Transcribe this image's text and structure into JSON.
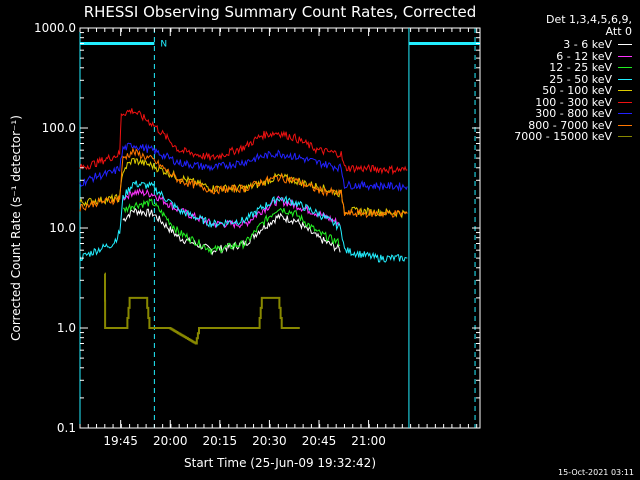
{
  "chart_data": {
    "type": "line",
    "title": "RHESSI Observing Summary Count Rates, Corrected",
    "xlabel": "Start Time (25-Jun-09 19:32:42)",
    "ylabel": "Corrected Count Rate (s⁻¹ detector⁻¹)",
    "yscale": "log",
    "ylim": [
      0.1,
      1000
    ],
    "xlim_minutes": [
      0,
      121
    ],
    "y_ticks": [
      "0.1",
      "1.0",
      "10.0",
      "100.0",
      "1000.0"
    ],
    "x_ticks": [
      {
        "label": "19:45",
        "t": 12.3
      },
      {
        "label": "20:00",
        "t": 27.3
      },
      {
        "label": "20:15",
        "t": 42.3
      },
      {
        "label": "20:30",
        "t": 57.3
      },
      {
        "label": "20:45",
        "t": 72.3
      },
      {
        "label": "21:00",
        "t": 87.3
      }
    ],
    "night_bars": [
      {
        "start": 0,
        "end": 22.5
      },
      {
        "start": 99.5,
        "end": 121
      }
    ],
    "night_label": "N",
    "markers": [
      {
        "t": 0,
        "style": "solid"
      },
      {
        "t": 22.5,
        "style": "dashed"
      },
      {
        "t": 99.5,
        "style": "solid"
      },
      {
        "t": 119.5,
        "style": "dashed"
      }
    ],
    "series": [
      {
        "name": "3 - 6 keV",
        "color": "#ffffff",
        "t": [
          0,
          12,
          13,
          16,
          22,
          30,
          40,
          50,
          55,
          60,
          65,
          72,
          79,
          80,
          99
        ],
        "v": [
          null,
          null,
          12,
          15,
          14,
          8,
          6,
          7,
          10,
          13,
          12,
          8,
          6,
          null,
          null
        ]
      },
      {
        "name": "6 - 12 keV",
        "color": "#ff33ff",
        "t": [
          0,
          12,
          13,
          16,
          22,
          30,
          40,
          50,
          55,
          60,
          65,
          72,
          79,
          80,
          99
        ],
        "v": [
          null,
          null,
          20,
          23,
          22,
          15,
          11,
          11,
          15,
          19,
          17,
          14,
          11,
          null,
          null
        ]
      },
      {
        "name": "12 - 25 keV",
        "color": "#22ee22",
        "t": [
          0,
          12,
          13,
          16,
          22,
          30,
          40,
          50,
          55,
          60,
          65,
          72,
          79,
          80,
          99
        ],
        "v": [
          null,
          null,
          15,
          17,
          18,
          9,
          6,
          7,
          11,
          16,
          14,
          9,
          7,
          null,
          null
        ]
      },
      {
        "name": "25 - 50 keV",
        "color": "#22eeff",
        "t": [
          0,
          5,
          10,
          12,
          13,
          16,
          22,
          30,
          40,
          50,
          55,
          60,
          65,
          72,
          79,
          80,
          90,
          99
        ],
        "v": [
          5,
          6,
          7,
          9,
          20,
          28,
          26,
          15,
          11,
          12,
          16,
          20,
          18,
          14,
          10,
          6,
          5,
          5
        ]
      },
      {
        "name": "50 - 100 keV",
        "color": "#ddcc00",
        "t": [
          0,
          12,
          13,
          16,
          22,
          30,
          40,
          50,
          55,
          60,
          65,
          72,
          79,
          80,
          99
        ],
        "v": [
          18,
          20,
          38,
          48,
          42,
          32,
          25,
          25,
          28,
          33,
          30,
          26,
          22,
          15,
          14
        ]
      },
      {
        "name": "100 - 300 keV",
        "color": "#ee1111",
        "t": [
          0,
          5,
          10,
          12,
          12.5,
          16,
          22,
          30,
          40,
          50,
          55,
          60,
          65,
          72,
          79,
          80,
          99
        ],
        "v": [
          40,
          45,
          52,
          55,
          140,
          150,
          110,
          60,
          50,
          65,
          85,
          90,
          80,
          60,
          55,
          40,
          38
        ]
      },
      {
        "name": "300 - 800 keV",
        "color": "#2222ff",
        "t": [
          0,
          5,
          10,
          12,
          13,
          16,
          22,
          30,
          40,
          50,
          55,
          60,
          65,
          72,
          79,
          80,
          99
        ],
        "v": [
          28,
          33,
          36,
          40,
          62,
          68,
          60,
          45,
          40,
          46,
          52,
          56,
          52,
          45,
          40,
          27,
          26
        ]
      },
      {
        "name": "800 - 7000 keV",
        "color": "#ff7700",
        "t": [
          0,
          5,
          10,
          12,
          13,
          16,
          22,
          30,
          40,
          50,
          55,
          60,
          65,
          72,
          79,
          80,
          99
        ],
        "v": [
          16,
          18,
          19,
          20,
          50,
          58,
          48,
          30,
          24,
          25,
          29,
          32,
          30,
          24,
          22,
          14,
          14
        ]
      },
      {
        "name": "7000 - 15000 keV",
        "color": "#888800",
        "t": [
          7.5,
          7.6,
          8,
          14,
          15,
          20,
          21,
          27,
          35,
          36,
          48,
          49,
          54,
          55,
          60,
          61,
          66,
          66.5
        ],
        "v": [
          3.5,
          1.0,
          1.0,
          1.0,
          2.0,
          2.0,
          1.0,
          1.0,
          0.7,
          1.0,
          1.0,
          1.0,
          1.0,
          2.0,
          2.0,
          1.0,
          1.0,
          1.0
        ]
      }
    ]
  },
  "legend": {
    "header_line1": "Det 1,3,4,5,6,9,",
    "header_line2": "Att 0"
  },
  "timestamp": "15-Oct-2021 03:11"
}
